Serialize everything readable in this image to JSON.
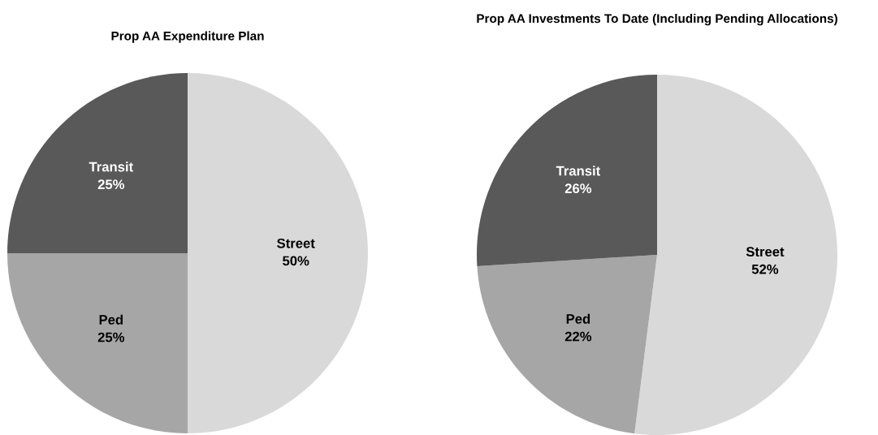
{
  "chart_data": [
    {
      "type": "pie",
      "title": "Prop AA Expenditure Plan",
      "categories": [
        "Street",
        "Ped",
        "Transit"
      ],
      "values": [
        50,
        25,
        25
      ],
      "value_labels": [
        "50%",
        "25%",
        "25%"
      ],
      "colors": [
        "#d9d9d9",
        "#a6a6a6",
        "#595959"
      ]
    },
    {
      "type": "pie",
      "title": "Prop AA Investments To Date (Including Pending Allocations)",
      "categories": [
        "Street",
        "Ped",
        "Transit"
      ],
      "values": [
        52,
        22,
        26
      ],
      "value_labels": [
        "52%",
        "22%",
        "26%"
      ],
      "colors": [
        "#d9d9d9",
        "#a6a6a6",
        "#595959"
      ]
    }
  ]
}
